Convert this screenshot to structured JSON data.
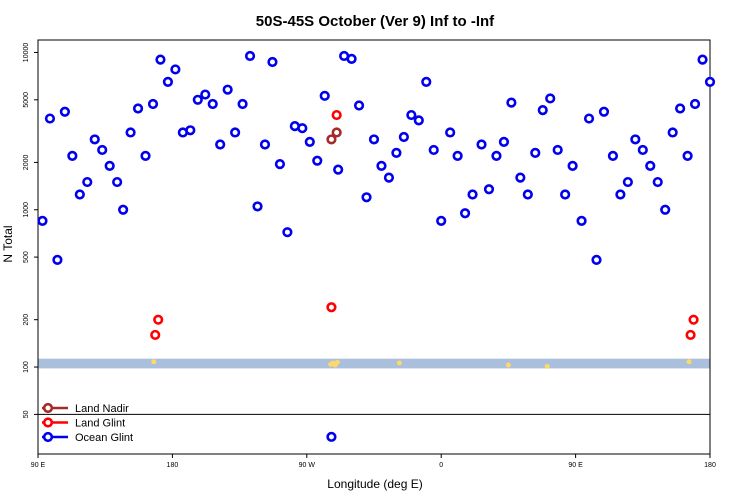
{
  "chart_data": {
    "type": "scatter",
    "title": "50S-45S October (Ver 9)   Inf to -Inf",
    "xlabel": "Longitude (deg E)",
    "ylabel": "N Total",
    "x_tick_labels": [
      "90 E",
      "180",
      "90 W",
      "0",
      "90 E",
      "180"
    ],
    "x_tick_values": [
      90,
      180,
      270,
      360,
      450,
      540
    ],
    "xlim": [
      90,
      540
    ],
    "y_scale": "log",
    "y_ticks": [
      50,
      100,
      200,
      500,
      1000,
      2000,
      5000,
      10000
    ],
    "y_tick_labels": [
      "50",
      "100",
      "200",
      "500",
      "1000",
      "2000",
      "5000",
      "10000"
    ],
    "ylim": [
      28,
      12000
    ],
    "legend_position": "bottom-left",
    "band": {
      "y_low": 98,
      "y_high": 113,
      "color": "#a9bfdc"
    },
    "series": [
      {
        "name": "Land Nadir",
        "color": "#a52a2a",
        "points": [
          [
            286.5,
            2800
          ],
          [
            290,
            3100
          ]
        ]
      },
      {
        "name": "Land Glint",
        "color": "#ff0000",
        "points": [
          [
            168.5,
            160
          ],
          [
            170.5,
            200
          ],
          [
            286.5,
            240
          ],
          [
            290,
            4000
          ],
          [
            527,
            160
          ],
          [
            529,
            200
          ]
        ]
      },
      {
        "name": "Ocean Glint",
        "color": "#0000ee",
        "points": [
          [
            93,
            850
          ],
          [
            98,
            3800
          ],
          [
            103,
            480
          ],
          [
            108,
            4200
          ],
          [
            113,
            2200
          ],
          [
            118,
            1250
          ],
          [
            123,
            1500
          ],
          [
            128,
            2800
          ],
          [
            133,
            2400
          ],
          [
            138,
            1900
          ],
          [
            143,
            1500
          ],
          [
            147,
            1000
          ],
          [
            152,
            3100
          ],
          [
            157,
            4400
          ],
          [
            162,
            2200
          ],
          [
            167,
            4700
          ],
          [
            172,
            9000
          ],
          [
            177,
            6500
          ],
          [
            182,
            7800
          ],
          [
            187,
            3100
          ],
          [
            192,
            3200
          ],
          [
            197,
            5000
          ],
          [
            202,
            5400
          ],
          [
            207,
            4700
          ],
          [
            212,
            2600
          ],
          [
            217,
            5800
          ],
          [
            222,
            3100
          ],
          [
            227,
            4700
          ],
          [
            232,
            9500
          ],
          [
            237,
            1050
          ],
          [
            242,
            2600
          ],
          [
            247,
            8700
          ],
          [
            252,
            1950
          ],
          [
            257,
            720
          ],
          [
            262,
            3400
          ],
          [
            267,
            3300
          ],
          [
            272,
            2700
          ],
          [
            277,
            2050
          ],
          [
            282,
            5300
          ],
          [
            291,
            1800
          ],
          [
            295,
            9500
          ],
          [
            300,
            9100
          ],
          [
            305,
            4600
          ],
          [
            310,
            1200
          ],
          [
            315,
            2800
          ],
          [
            320,
            1900
          ],
          [
            325,
            1600
          ],
          [
            330,
            2300
          ],
          [
            335,
            2900
          ],
          [
            340,
            4000
          ],
          [
            345,
            3700
          ],
          [
            350,
            6500
          ],
          [
            355,
            2400
          ],
          [
            360,
            850
          ],
          [
            366,
            3100
          ],
          [
            371,
            2200
          ],
          [
            376,
            950
          ],
          [
            381,
            1250
          ],
          [
            387,
            2600
          ],
          [
            392,
            1350
          ],
          [
            397,
            2200
          ],
          [
            402,
            2700
          ],
          [
            407,
            4800
          ],
          [
            413,
            1600
          ],
          [
            418,
            1250
          ],
          [
            423,
            2300
          ],
          [
            428,
            4300
          ],
          [
            433,
            5100
          ],
          [
            438,
            2400
          ],
          [
            443,
            1250
          ],
          [
            448,
            1900
          ],
          [
            454,
            850
          ],
          [
            459,
            3800
          ],
          [
            464,
            480
          ],
          [
            469,
            4200
          ],
          [
            475,
            2200
          ],
          [
            480,
            1250
          ],
          [
            485,
            1500
          ],
          [
            490,
            2800
          ],
          [
            495,
            2400
          ],
          [
            500,
            1900
          ],
          [
            505,
            1500
          ],
          [
            510,
            1000
          ],
          [
            515,
            3100
          ],
          [
            520,
            4400
          ],
          [
            525,
            2200
          ],
          [
            530,
            4700
          ],
          [
            535,
            9000
          ],
          [
            540,
            6500
          ],
          [
            286.5,
            36
          ]
        ]
      },
      {
        "name": "",
        "color": "#ffd966",
        "marker": "tiny-dot",
        "points": [
          [
            167.5,
            108
          ],
          [
            286,
            104
          ],
          [
            287.5,
            106
          ],
          [
            289,
            103
          ],
          [
            290.5,
            107
          ],
          [
            332,
            106
          ],
          [
            405,
            103
          ],
          [
            431,
            101
          ],
          [
            526,
            108
          ]
        ]
      }
    ]
  }
}
